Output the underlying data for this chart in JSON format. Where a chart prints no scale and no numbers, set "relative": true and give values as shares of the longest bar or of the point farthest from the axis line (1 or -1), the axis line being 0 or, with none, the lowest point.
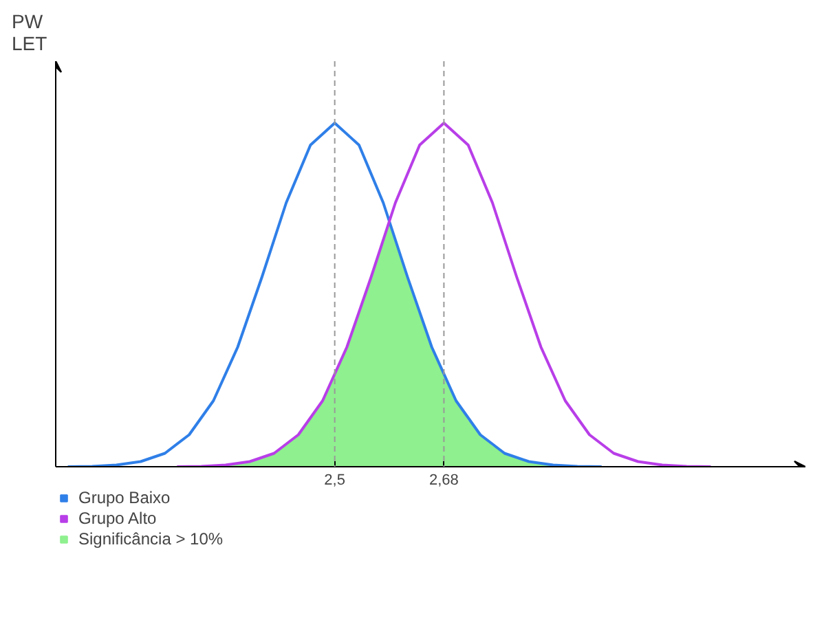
{
  "chart_data": {
    "type": "line",
    "ylabel": "PW\nLET",
    "relative": true,
    "xlim": [
      2.04,
      3.276
    ],
    "xticks": [
      {
        "value": 2.5,
        "label": "2,5"
      },
      {
        "value": 2.68,
        "label": "2,68"
      }
    ],
    "grid": false,
    "legend": "bottom",
    "line_style": "solid",
    "marker": "none",
    "ref_lines": [
      {
        "axis": "x",
        "value": 2.5,
        "color": "#999999",
        "line_style": "dashed"
      },
      {
        "axis": "x",
        "value": 2.68,
        "color": "#999999",
        "line_style": "dashed"
      }
    ],
    "series": [
      {
        "name": "Significância > 10%",
        "type": "area",
        "color": "#8ef08e",
        "x": [
          2.24,
          2.28,
          2.32,
          2.36,
          2.4,
          2.44,
          2.48,
          2.52,
          2.56,
          2.59,
          2.6,
          2.64,
          2.68,
          2.72,
          2.76,
          2.8,
          2.84,
          2.88,
          2.94
        ],
        "values": [
          0,
          0.001,
          0.005,
          0.015,
          0.039,
          0.093,
          0.192,
          0.348,
          0.552,
          0.715,
          0.66,
          0.445,
          0.262,
          0.135,
          0.061,
          0.024,
          0.008,
          0.003,
          0
        ]
      },
      {
        "name": "Grupo Baixo",
        "color": "#2f7fe8",
        "x": [
          2.06,
          2.1,
          2.14,
          2.18,
          2.22,
          2.26,
          2.3,
          2.34,
          2.38,
          2.42,
          2.46,
          2.5,
          2.54,
          2.58,
          2.62,
          2.66,
          2.7,
          2.74,
          2.78,
          2.82,
          2.86,
          2.9,
          2.94
        ],
        "values": [
          0,
          0.001,
          0.005,
          0.015,
          0.039,
          0.093,
          0.192,
          0.348,
          0.552,
          0.768,
          0.936,
          1,
          0.936,
          0.768,
          0.552,
          0.348,
          0.192,
          0.093,
          0.039,
          0.015,
          0.005,
          0.001,
          0
        ]
      },
      {
        "name": "Grupo Alto",
        "color": "#b83ee8",
        "x": [
          2.24,
          2.28,
          2.32,
          2.36,
          2.4,
          2.44,
          2.48,
          2.52,
          2.56,
          2.6,
          2.64,
          2.68,
          2.72,
          2.76,
          2.8,
          2.84,
          2.88,
          2.92,
          2.96,
          3.0,
          3.04,
          3.08,
          3.12
        ],
        "values": [
          0,
          0.001,
          0.005,
          0.015,
          0.039,
          0.093,
          0.192,
          0.348,
          0.552,
          0.768,
          0.936,
          1,
          0.936,
          0.768,
          0.552,
          0.348,
          0.192,
          0.093,
          0.039,
          0.015,
          0.005,
          0.001,
          0
        ]
      }
    ]
  }
}
